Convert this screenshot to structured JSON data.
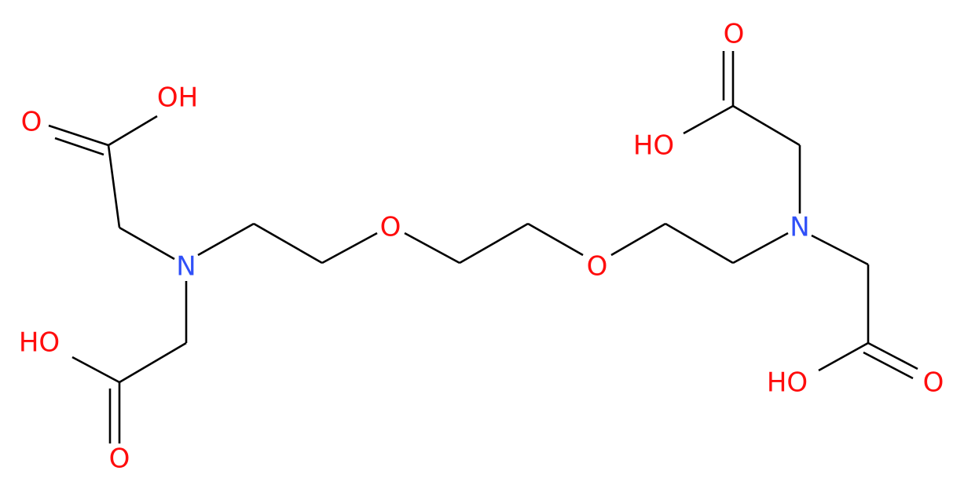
{
  "atoms": [
    "O",
    "OH",
    "N",
    "HO",
    "O",
    "O",
    "O",
    "O",
    "HO",
    "N",
    "HO",
    "O"
  ]
}
